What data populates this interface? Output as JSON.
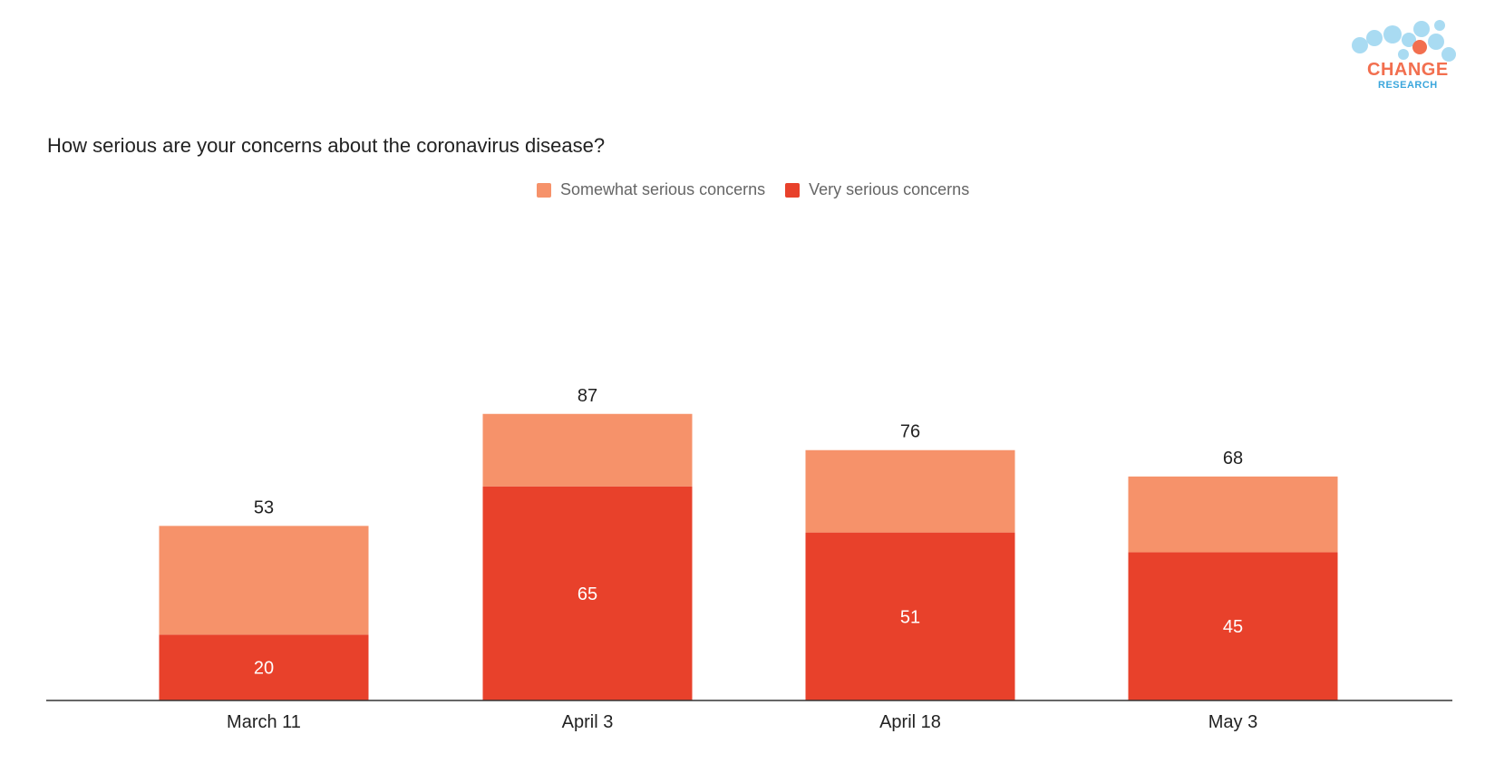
{
  "chart_data": {
    "type": "bar",
    "stacked": true,
    "title": "How serious are your concerns about the coronavirus disease?",
    "categories": [
      "March 11",
      "April 3",
      "April 18",
      "May 3"
    ],
    "series": [
      {
        "name": "Very serious concerns",
        "values": [
          20,
          65,
          51,
          45
        ],
        "color": "#e8412b"
      },
      {
        "name": "Somewhat serious concerns",
        "values": [
          33,
          22,
          25,
          23
        ],
        "color": "#f6926a"
      }
    ],
    "totals": [
      53,
      87,
      76,
      68
    ],
    "legend_order": [
      "Somewhat serious concerns",
      "Very serious concerns"
    ],
    "legend_position": "top-center",
    "grid": false,
    "ylim": [
      0,
      100
    ]
  },
  "logo": {
    "main": "CHANGE",
    "sub": "RESEARCH",
    "main_color": "#f26f4f",
    "sub_color": "#3aa6dc",
    "bubble_color": "#a9dbf2",
    "dot_color": "#f26f4f"
  },
  "colors": {
    "somewhat": "#f6926a",
    "very": "#e8412b",
    "axis": "#333333"
  }
}
